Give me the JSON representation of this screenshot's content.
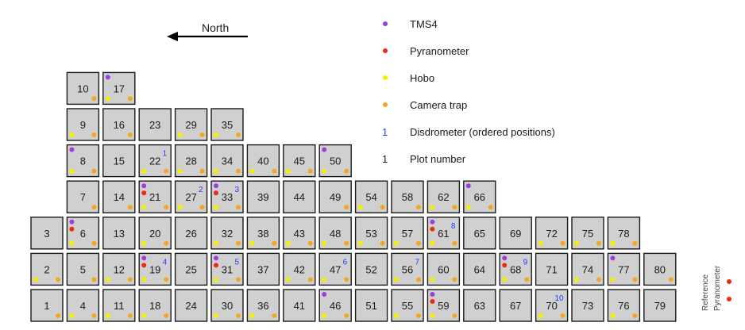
{
  "north_label": "North",
  "legend": [
    {
      "key": "tms4",
      "symbol": "dot",
      "color": "#9b3fe0",
      "label": "TMS4"
    },
    {
      "key": "pyranometer",
      "symbol": "dot",
      "color": "#ee2a10",
      "label": "Pyranometer"
    },
    {
      "key": "hobo",
      "symbol": "dot",
      "color": "#f4f000",
      "label": "Hobo"
    },
    {
      "key": "camera",
      "symbol": "dot",
      "color": "#f5a623",
      "label": "Camera trap"
    },
    {
      "key": "disdrometer",
      "symbol": "1",
      "color": "#1f3fff",
      "label": "Disdrometer (ordered positions)"
    },
    {
      "key": "plot",
      "symbol": "1",
      "color": "#1a1a1a",
      "label": "Plot number"
    }
  ],
  "reference": {
    "line1": "Reference",
    "line2": "Pyranometer"
  },
  "columns": [
    {
      "plots": [
        {
          "n": "1",
          "camera": true
        },
        {
          "n": "2",
          "hobo": true,
          "camera": true
        },
        {
          "n": "3"
        }
      ]
    },
    {
      "plots": [
        {
          "n": "4",
          "hobo": true,
          "camera": true
        },
        {
          "n": "5",
          "camera": true
        },
        {
          "n": "6",
          "tms4": true,
          "pyranometer": true,
          "hobo": true,
          "camera": true
        },
        {
          "n": "7",
          "camera": true
        },
        {
          "n": "8",
          "tms4": true,
          "hobo": true,
          "camera": true
        },
        {
          "n": "9",
          "hobo": true,
          "camera": true
        },
        {
          "n": "10",
          "camera": true
        }
      ]
    },
    {
      "plots": [
        {
          "n": "11",
          "hobo": true,
          "camera": true
        },
        {
          "n": "12",
          "hobo": true,
          "camera": true
        },
        {
          "n": "13"
        },
        {
          "n": "14",
          "camera": true
        },
        {
          "n": "15"
        },
        {
          "n": "16",
          "camera": true
        },
        {
          "n": "17",
          "tms4": true,
          "hobo": true,
          "camera": true
        }
      ]
    },
    {
      "plots": [
        {
          "n": "18",
          "hobo": true,
          "camera": true
        },
        {
          "n": "19",
          "tms4": true,
          "pyranometer": true,
          "hobo": true,
          "camera": true,
          "disd": "4"
        },
        {
          "n": "20",
          "hobo": true,
          "camera": true
        },
        {
          "n": "21",
          "tms4": true,
          "pyranometer": true,
          "hobo": true,
          "camera": true
        },
        {
          "n": "22",
          "hobo": true,
          "camera": true,
          "disd": "1"
        },
        {
          "n": "23"
        }
      ]
    },
    {
      "plots": [
        {
          "n": "24"
        },
        {
          "n": "25"
        },
        {
          "n": "26"
        },
        {
          "n": "27",
          "hobo": true,
          "camera": true,
          "disd": "2"
        },
        {
          "n": "28",
          "hobo": true,
          "camera": true
        },
        {
          "n": "29",
          "hobo": true,
          "camera": true
        }
      ]
    },
    {
      "plots": [
        {
          "n": "30",
          "hobo": true,
          "camera": true
        },
        {
          "n": "31",
          "tms4": true,
          "pyranometer": true,
          "hobo": true,
          "camera": true,
          "disd": "5"
        },
        {
          "n": "32",
          "hobo": true,
          "camera": true
        },
        {
          "n": "33",
          "tms4": true,
          "pyranometer": true,
          "hobo": true,
          "camera": true,
          "disd": "3"
        },
        {
          "n": "34",
          "hobo": true,
          "camera": true
        },
        {
          "n": "35",
          "hobo": true,
          "camera": true
        }
      ]
    },
    {
      "plots": [
        {
          "n": "36",
          "hobo": true,
          "camera": true
        },
        {
          "n": "37"
        },
        {
          "n": "38",
          "hobo": true,
          "camera": true
        },
        {
          "n": "39"
        },
        {
          "n": "40",
          "hobo": true,
          "camera": true
        }
      ]
    },
    {
      "plots": [
        {
          "n": "41"
        },
        {
          "n": "42",
          "hobo": true,
          "camera": true
        },
        {
          "n": "43",
          "hobo": true,
          "camera": true
        },
        {
          "n": "44"
        },
        {
          "n": "45",
          "hobo": true,
          "camera": true
        }
      ]
    },
    {
      "plots": [
        {
          "n": "46",
          "tms4": true,
          "hobo": true,
          "camera": true
        },
        {
          "n": "47",
          "hobo": true,
          "camera": true,
          "disd": "6"
        },
        {
          "n": "48",
          "hobo": true,
          "camera": true
        },
        {
          "n": "49",
          "camera": true
        },
        {
          "n": "50",
          "tms4": true,
          "hobo": true,
          "camera": true
        }
      ]
    },
    {
      "plots": [
        {
          "n": "51"
        },
        {
          "n": "52"
        },
        {
          "n": "53",
          "hobo": true,
          "camera": true
        },
        {
          "n": "54",
          "hobo": true,
          "camera": true
        }
      ]
    },
    {
      "plots": [
        {
          "n": "55",
          "hobo": true,
          "camera": true
        },
        {
          "n": "56",
          "hobo": true,
          "camera": true,
          "disd": "7"
        },
        {
          "n": "57",
          "hobo": true,
          "camera": true
        },
        {
          "n": "58",
          "camera": true
        }
      ]
    },
    {
      "plots": [
        {
          "n": "59",
          "tms4": true,
          "pyranometer": true,
          "hobo": true,
          "camera": true
        },
        {
          "n": "60",
          "hobo": true,
          "camera": true
        },
        {
          "n": "61",
          "tms4": true,
          "pyranometer": true,
          "hobo": true,
          "camera": true,
          "disd": "8"
        },
        {
          "n": "62",
          "hobo": true,
          "camera": true
        }
      ]
    },
    {
      "plots": [
        {
          "n": "63"
        },
        {
          "n": "64"
        },
        {
          "n": "65"
        },
        {
          "n": "66",
          "tms4": true,
          "hobo": true,
          "camera": true
        }
      ]
    },
    {
      "plots": [
        {
          "n": "67"
        },
        {
          "n": "68",
          "tms4": true,
          "pyranometer": true,
          "hobo": true,
          "camera": true,
          "disd": "9"
        },
        {
          "n": "69"
        }
      ]
    },
    {
      "plots": [
        {
          "n": "70",
          "hobo": true,
          "camera": true,
          "disd": "10"
        },
        {
          "n": "71"
        },
        {
          "n": "72",
          "hobo": true,
          "camera": true
        }
      ]
    },
    {
      "plots": [
        {
          "n": "73"
        },
        {
          "n": "74",
          "hobo": true,
          "camera": true
        },
        {
          "n": "75",
          "hobo": true,
          "camera": true
        }
      ]
    },
    {
      "plots": [
        {
          "n": "76",
          "hobo": true,
          "camera": true
        },
        {
          "n": "77",
          "tms4": true,
          "hobo": true,
          "camera": true
        },
        {
          "n": "78",
          "hobo": true,
          "camera": true
        }
      ]
    },
    {
      "plots": [
        {
          "n": "79"
        },
        {
          "n": "80",
          "camera": true
        }
      ]
    }
  ]
}
